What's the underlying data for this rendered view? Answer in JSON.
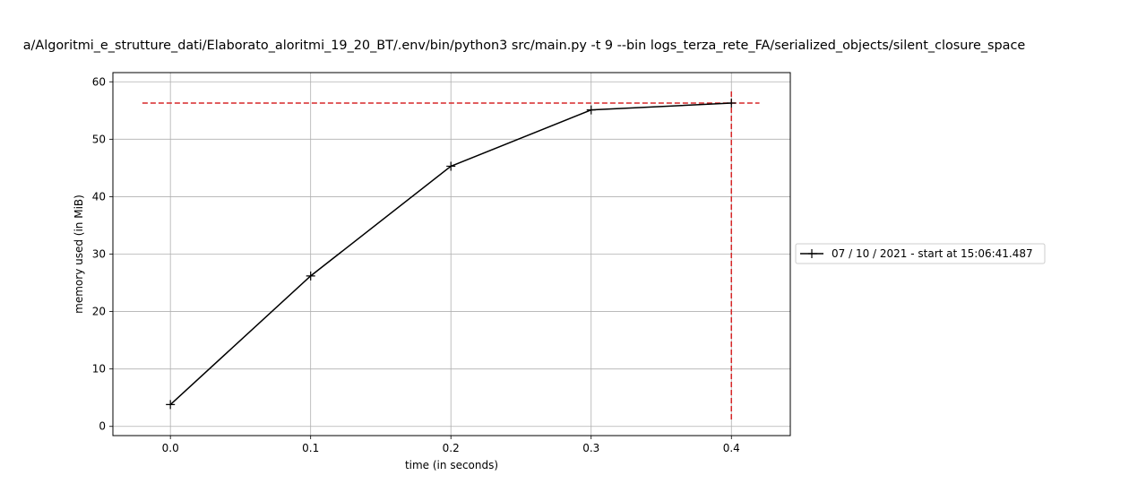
{
  "chart_data": {
    "type": "line",
    "title": "a/Algoritmi_e_strutture_dati/Elaborato_aloritmi_19_20_BT/.env/bin/python3 src/main.py -t 9 --bin logs_terza_rete_FA/serialized_objects/silent_closure_space",
    "xlabel": "time (in seconds)",
    "ylabel": "memory used (in MiB)",
    "xlim": [
      -0.041,
      0.442
    ],
    "ylim": [
      -1.6,
      61.6
    ],
    "x_ticks": [
      0.0,
      0.1,
      0.2,
      0.3,
      0.4
    ],
    "x_tick_labels": [
      "0.0",
      "0.1",
      "0.2",
      "0.3",
      "0.4"
    ],
    "y_ticks": [
      0,
      10,
      20,
      30,
      40,
      50,
      60
    ],
    "y_tick_labels": [
      "0",
      "10",
      "20",
      "30",
      "40",
      "50",
      "60"
    ],
    "grid": true,
    "legend_position": "outside-right",
    "series": [
      {
        "name": "07 / 10 / 2021 - start at 15:06:41.487",
        "color": "#000000",
        "marker": "plus",
        "x": [
          0.0,
          0.1,
          0.2,
          0.3,
          0.4
        ],
        "y": [
          3.8,
          26.2,
          45.3,
          55.1,
          56.3
        ]
      }
    ],
    "reference_lines": [
      {
        "orientation": "horizontal",
        "y": 56.3,
        "x_range": [
          -0.02,
          0.42
        ],
        "color": "#d62728",
        "style": "dashed"
      },
      {
        "orientation": "vertical",
        "x": 0.4,
        "y_range": [
          1.2,
          58.8
        ],
        "color": "#d62728",
        "style": "dashed"
      }
    ]
  }
}
